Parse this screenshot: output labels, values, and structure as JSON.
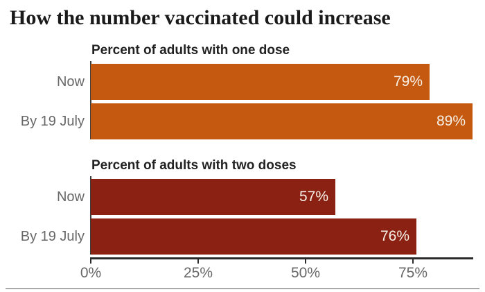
{
  "page": {
    "title": "How the number vaccinated could increase"
  },
  "chart_data": {
    "type": "bar",
    "orientation": "horizontal",
    "unit": "%",
    "title": "How the number vaccinated could increase",
    "x_axis": {
      "tick_values": [
        0,
        25,
        50,
        75
      ],
      "tick_labels": [
        "0%",
        "25%",
        "50%",
        "75%"
      ],
      "axis_range": [
        0,
        89
      ],
      "grid": false
    },
    "legend": "none",
    "groups": [
      {
        "title": "Percent of adults with one dose",
        "color": "#c4590f",
        "categories": [
          "Now",
          "By 19 July"
        ],
        "values": [
          79,
          89
        ],
        "value_labels": [
          "79%",
          "89%"
        ]
      },
      {
        "title": "Percent of adults with two doses",
        "color": "#8a2112",
        "categories": [
          "Now",
          "By 19 July"
        ],
        "values": [
          57,
          76
        ],
        "value_labels": [
          "57%",
          "76%"
        ]
      }
    ]
  },
  "colors": {
    "title_text": "#1a1a1a",
    "subtitle_text": "#222222",
    "category_label": "#686868",
    "value_text": "#f7f1e8",
    "axis_line": "#2b2b2b",
    "tick_label": "#686868",
    "divider": "#a8a8a8",
    "background": "#ffffff"
  }
}
